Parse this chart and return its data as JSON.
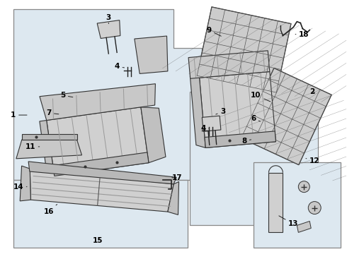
{
  "bg_color": "#ffffff",
  "line_color": "#222222",
  "label_color": "#000000",
  "panel_fill": "#e0e8f0",
  "panel_edge": "#999999",
  "part_fill": "#d0d0d0",
  "part_edge": "#333333",
  "grid_fill": "#c8c8c8",
  "figsize": [
    4.9,
    3.6
  ],
  "dpi": 100
}
